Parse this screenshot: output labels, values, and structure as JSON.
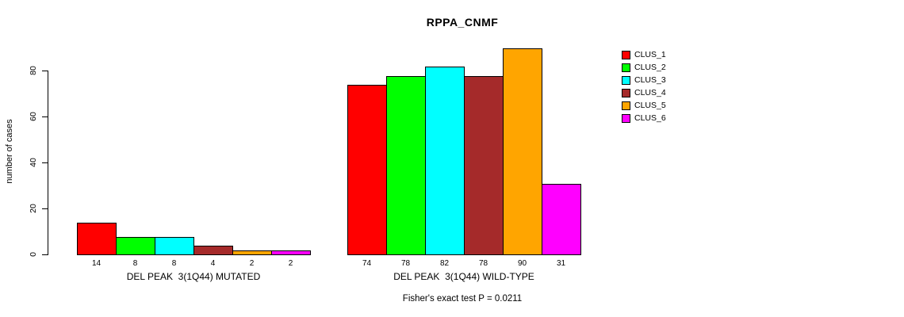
{
  "chart_data": {
    "type": "bar",
    "title": "RPPA_CNMF",
    "ylabel": "number of cases",
    "xlabel": "",
    "ylim": [
      0,
      80
    ],
    "yticks": [
      0,
      20,
      40,
      60,
      80
    ],
    "grid": false,
    "legend_position": "right",
    "bar_value_labels": true,
    "categories": [
      "DEL PEAK  3(1Q44) MUTATED",
      "DEL PEAK  3(1Q44) WILD-TYPE"
    ],
    "series": [
      {
        "name": "CLUS_1",
        "color": "#FF0000",
        "values": [
          14,
          74
        ]
      },
      {
        "name": "CLUS_2",
        "color": "#00FF00",
        "values": [
          8,
          78
        ]
      },
      {
        "name": "CLUS_3",
        "color": "#00FFFF",
        "values": [
          8,
          82
        ]
      },
      {
        "name": "CLUS_4",
        "color": "#A52A2A",
        "values": [
          4,
          78
        ]
      },
      {
        "name": "CLUS_5",
        "color": "#FFA500",
        "values": [
          2,
          90
        ]
      },
      {
        "name": "CLUS_6",
        "color": "#FF00FF",
        "values": [
          2,
          31
        ]
      }
    ],
    "annotation": "Fisher's exact test P = 0.0211"
  }
}
